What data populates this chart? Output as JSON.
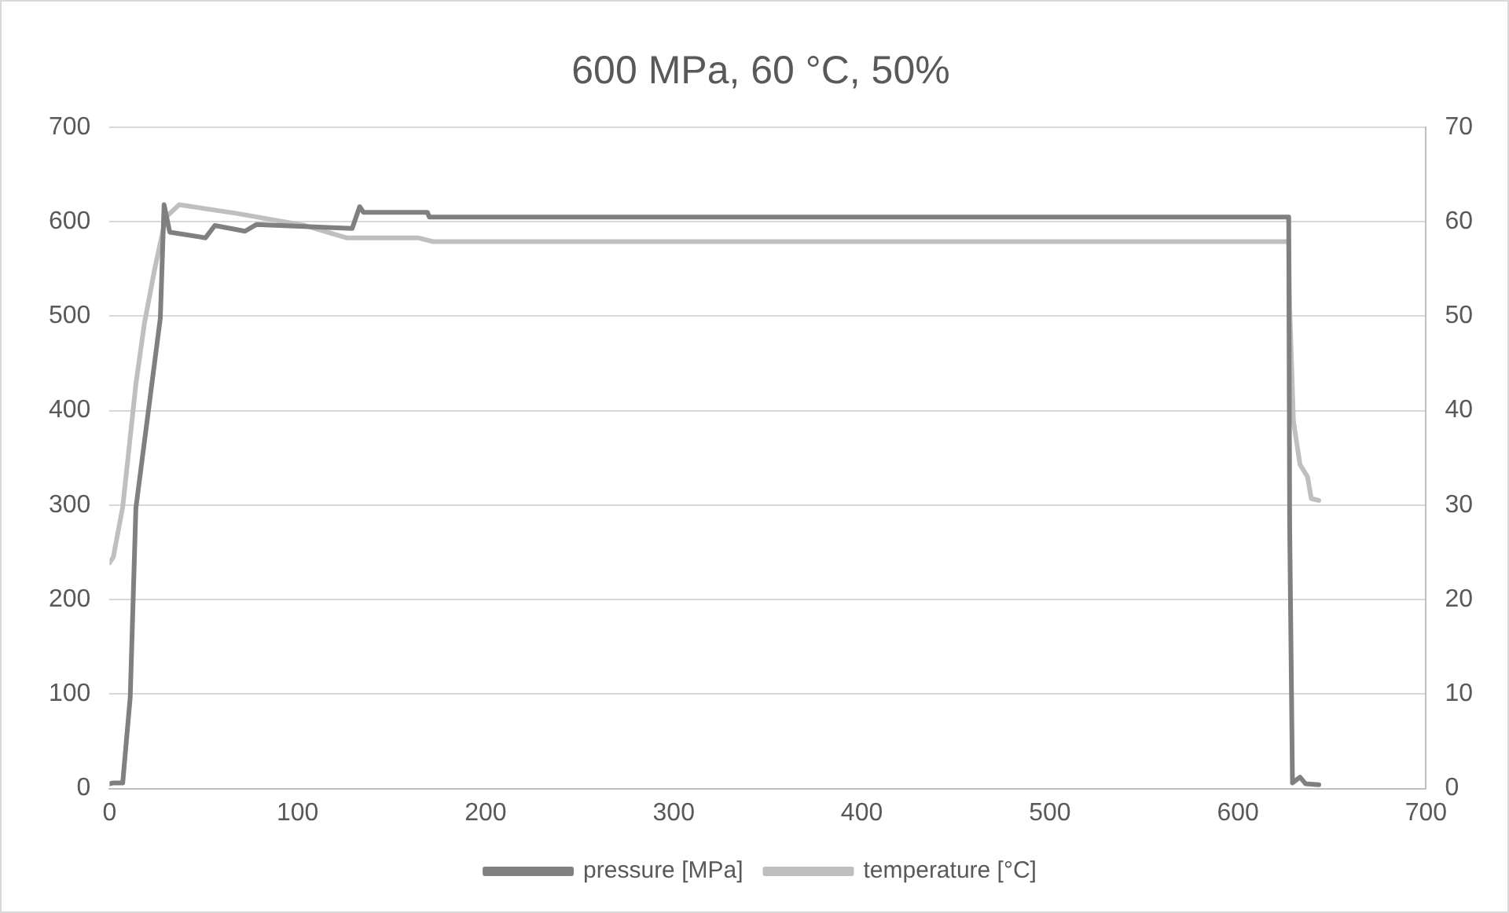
{
  "chart_data": {
    "type": "line",
    "title": "600 MPa, 60 °C, 50%",
    "xlim": [
      0,
      700
    ],
    "xticks": [
      0,
      100,
      200,
      300,
      400,
      500,
      600,
      700
    ],
    "ylim": [
      0,
      700
    ],
    "yticks": [
      0,
      100,
      200,
      300,
      400,
      500,
      600,
      700
    ],
    "y2lim": [
      0,
      70
    ],
    "y2ticks": [
      0,
      10,
      20,
      30,
      40,
      50,
      60,
      70
    ],
    "grid": "y",
    "legend": "bottom",
    "marker": "none",
    "line_style": "solid",
    "series": [
      {
        "name": "pressure [MPa]",
        "color": "#808080",
        "x": [
          0,
          2,
          7,
          11,
          14,
          27,
          29,
          32,
          51,
          56,
          72,
          78,
          129,
          133,
          135,
          169,
          170,
          627,
          627.5,
          629,
          633,
          636,
          643
        ],
        "values": [
          5,
          6,
          6,
          97,
          297,
          498,
          618,
          589,
          583,
          596,
          590,
          597,
          593,
          616,
          610,
          610,
          605,
          605,
          278,
          6,
          12,
          5,
          4
        ]
      },
      {
        "name": "temperature [°C]",
        "color": "#bfbfbf",
        "axis": "y2",
        "x": [
          0,
          2,
          7,
          14,
          18.5,
          24,
          30,
          37,
          67,
          104,
          126,
          164,
          172,
          627,
          627.5,
          629.5,
          633,
          637,
          639,
          643
        ],
        "values": [
          23.9,
          24.5,
          29.8,
          42.8,
          49.2,
          55,
          60.5,
          61.8,
          60.9,
          59.6,
          58.3,
          58.3,
          57.9,
          57.9,
          51.1,
          38.9,
          34.3,
          33,
          30.7,
          30.5
        ]
      }
    ]
  }
}
